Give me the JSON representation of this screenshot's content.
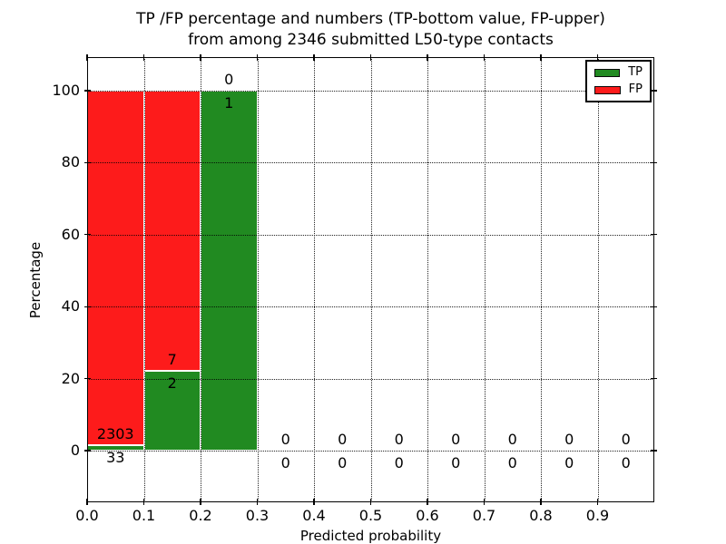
{
  "title": {
    "line1": "TP /FP percentage and numbers (TP-bottom value, FP-upper)",
    "line2": "from among 2346 submitted L50-type contacts"
  },
  "chart_data": {
    "type": "bar",
    "stacked": true,
    "title": "TP /FP percentage and numbers (TP-bottom value, FP-upper) from among 2346 submitted L50-type contacts",
    "xlabel": "Predicted probability",
    "ylabel": "Percentage",
    "total_contacts": 2346,
    "xlim": [
      0.0,
      1.0
    ],
    "ylim": [
      -15,
      110
    ],
    "grid": "dotted",
    "legend_position": "upper right",
    "x_ticks": [
      {
        "value": 0.0,
        "label": "0.0"
      },
      {
        "value": 0.1,
        "label": "0.1"
      },
      {
        "value": 0.2,
        "label": "0.2"
      },
      {
        "value": 0.3,
        "label": "0.3"
      },
      {
        "value": 0.4,
        "label": "0.4"
      },
      {
        "value": 0.5,
        "label": "0.5"
      },
      {
        "value": 0.6,
        "label": "0.6"
      },
      {
        "value": 0.7,
        "label": "0.7"
      },
      {
        "value": 0.8,
        "label": "0.8"
      },
      {
        "value": 0.9,
        "label": "0.9"
      }
    ],
    "y_ticks": [
      {
        "value": 0,
        "label": "0"
      },
      {
        "value": 20,
        "label": "20"
      },
      {
        "value": 40,
        "label": "40"
      },
      {
        "value": 60,
        "label": "60"
      },
      {
        "value": 80,
        "label": "80"
      },
      {
        "value": 100,
        "label": "100"
      }
    ],
    "series": [
      {
        "name": "TP",
        "color": "#218a21"
      },
      {
        "name": "FP",
        "color": "#fd1b1b"
      }
    ],
    "bins": [
      {
        "x_start": 0.0,
        "x_end": 0.1,
        "tp_count": 33,
        "fp_count": 2303,
        "tp_pct": 1.41,
        "fp_pct": 98.59
      },
      {
        "x_start": 0.1,
        "x_end": 0.2,
        "tp_count": 2,
        "fp_count": 7,
        "tp_pct": 22.22,
        "fp_pct": 77.78
      },
      {
        "x_start": 0.2,
        "x_end": 0.3,
        "tp_count": 1,
        "fp_count": 0,
        "tp_pct": 100.0,
        "fp_pct": 0.0
      },
      {
        "x_start": 0.3,
        "x_end": 0.4,
        "tp_count": 0,
        "fp_count": 0,
        "tp_pct": 0.0,
        "fp_pct": 0.0
      },
      {
        "x_start": 0.4,
        "x_end": 0.5,
        "tp_count": 0,
        "fp_count": 0,
        "tp_pct": 0.0,
        "fp_pct": 0.0
      },
      {
        "x_start": 0.5,
        "x_end": 0.6,
        "tp_count": 0,
        "fp_count": 0,
        "tp_pct": 0.0,
        "fp_pct": 0.0
      },
      {
        "x_start": 0.6,
        "x_end": 0.7,
        "tp_count": 0,
        "fp_count": 0,
        "tp_pct": 0.0,
        "fp_pct": 0.0
      },
      {
        "x_start": 0.7,
        "x_end": 0.8,
        "tp_count": 0,
        "fp_count": 0,
        "tp_pct": 0.0,
        "fp_pct": 0.0
      },
      {
        "x_start": 0.8,
        "x_end": 0.9,
        "tp_count": 0,
        "fp_count": 0,
        "tp_pct": 0.0,
        "fp_pct": 0.0
      },
      {
        "x_start": 0.9,
        "x_end": 1.0,
        "tp_count": 0,
        "fp_count": 0,
        "tp_pct": 0.0,
        "fp_pct": 0.0
      }
    ]
  }
}
